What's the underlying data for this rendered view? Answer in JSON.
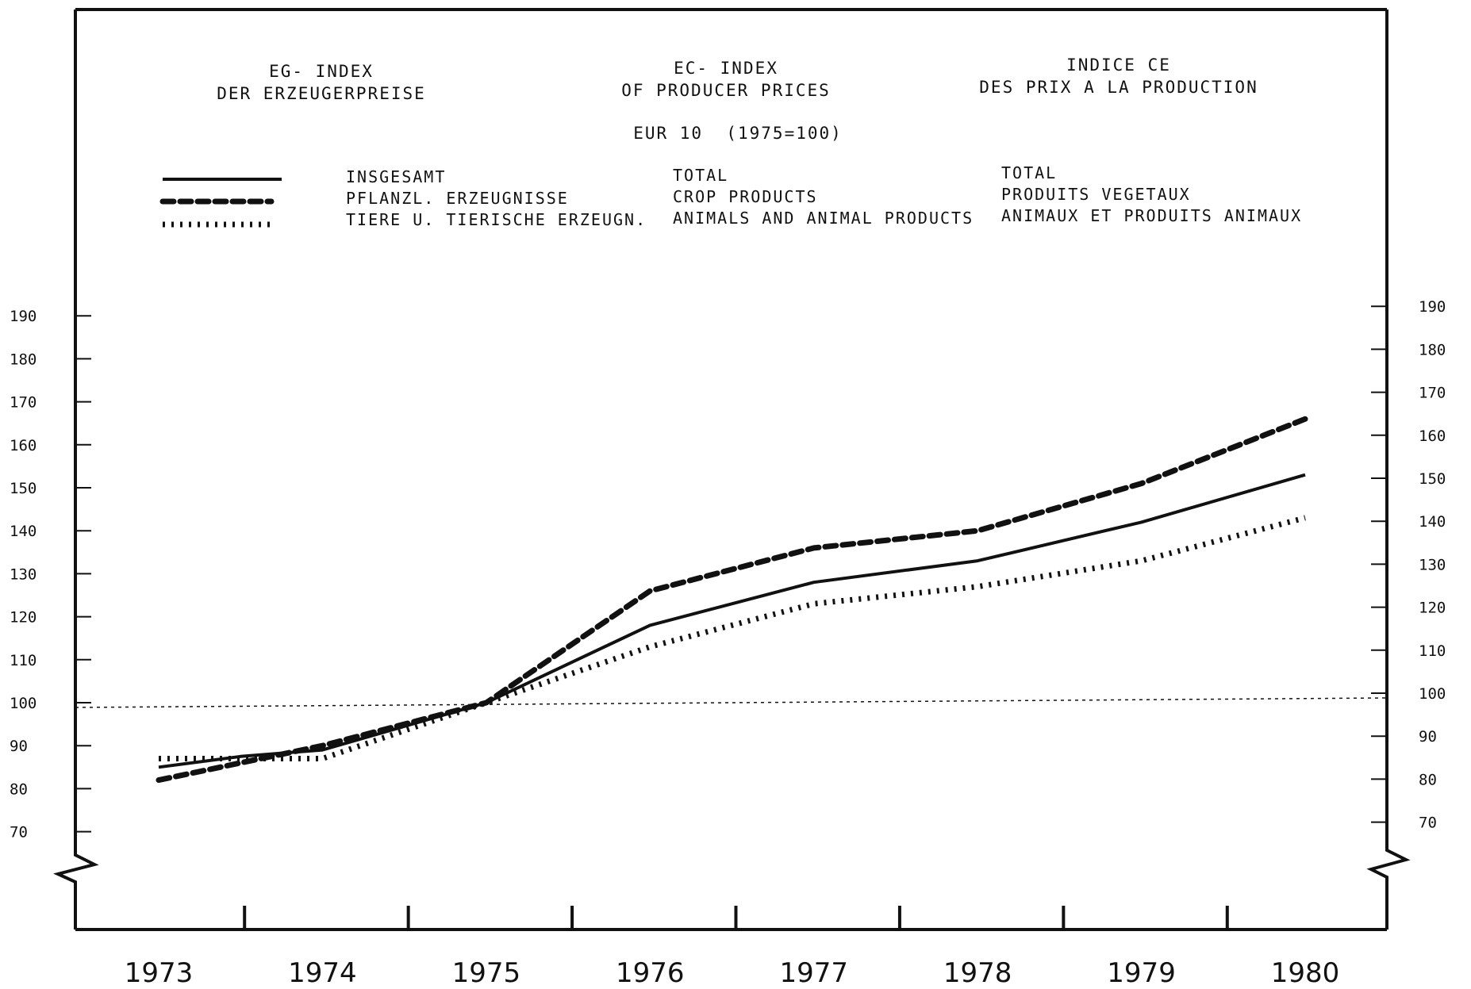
{
  "header": {
    "de": {
      "line1": "EG- INDEX",
      "line2": "DER ERZEUGERPREISE"
    },
    "en": {
      "line1": "EC- INDEX",
      "line2": "OF PRODUCER PRICES"
    },
    "fr": {
      "line1": "INDICE CE",
      "line2": "DES PRIX A LA PRODUCTION"
    },
    "subtitle": "EUR 10  (1975=100)"
  },
  "legend": {
    "de": [
      "INSGESAMT",
      "PFLANZL. ERZEUGNISSE",
      "TIERE U. TIERISCHE ERZEUGN."
    ],
    "en": [
      "TOTAL",
      "CROP PRODUCTS",
      "ANIMALS AND ANIMAL PRODUCTS"
    ],
    "fr": [
      "TOTAL",
      "PRODUITS VEGETAUX",
      "ANIMAUX ET PRODUITS ANIMAUX"
    ]
  },
  "chart_data": {
    "type": "line",
    "title": "EUR 10  (1975=100)",
    "x": [
      1973,
      1974,
      1975,
      1976,
      1977,
      1978,
      1979,
      1980
    ],
    "x_tick_labels": [
      "1973",
      "1974",
      "1975",
      "1976",
      "1977",
      "1978",
      "1979",
      "1980"
    ],
    "y_ticks": [
      70,
      80,
      90,
      100,
      110,
      120,
      130,
      140,
      150,
      160,
      170,
      180,
      190
    ],
    "ylim": [
      60,
      195
    ],
    "reference_line": 100,
    "axis_break": true,
    "grid": false,
    "legend_position": "top-left",
    "series": [
      {
        "style": "solid",
        "points": [
          [
            1973,
            85
          ],
          [
            1973.5,
            87.5
          ],
          [
            1974,
            89
          ],
          [
            1975,
            100
          ],
          [
            1976,
            118
          ],
          [
            1977,
            128
          ],
          [
            1978,
            133
          ],
          [
            1979,
            142
          ],
          [
            1980,
            153
          ]
        ]
      },
      {
        "style": "dashed",
        "points": [
          [
            1973,
            82
          ],
          [
            1974,
            90
          ],
          [
            1975,
            100
          ],
          [
            1976,
            126
          ],
          [
            1977,
            136
          ],
          [
            1978,
            140
          ],
          [
            1979,
            151
          ],
          [
            1980,
            166
          ]
        ]
      },
      {
        "style": "dotted",
        "points": [
          [
            1973,
            87
          ],
          [
            1974,
            87
          ],
          [
            1975,
            100
          ],
          [
            1976,
            113
          ],
          [
            1977,
            123
          ],
          [
            1978,
            127
          ],
          [
            1979,
            133
          ],
          [
            1980,
            143
          ]
        ]
      }
    ]
  },
  "colors": {
    "ink": "#111111",
    "background": "#ffffff"
  }
}
